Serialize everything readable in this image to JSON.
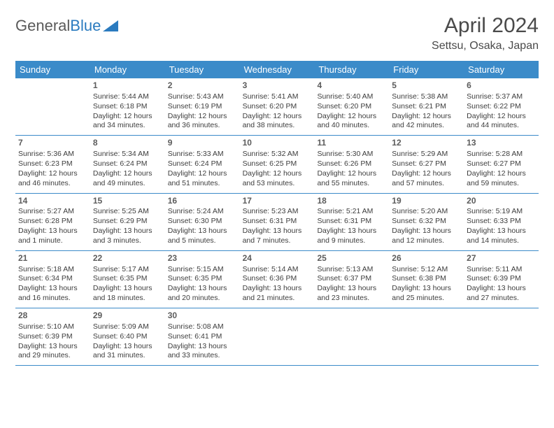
{
  "brand": {
    "part1": "General",
    "part2": "Blue"
  },
  "title": "April 2024",
  "location": "Settsu, Osaka, Japan",
  "colors": {
    "header_bg": "#3b8bc9",
    "header_text": "#ffffff",
    "rule": "#3b8bc9",
    "body_text": "#3d3d3d",
    "title_text": "#4a4a4a",
    "logo_gray": "#5a5a5a",
    "logo_blue": "#2b7bbf",
    "background": "#ffffff"
  },
  "typography": {
    "title_fontsize": 30,
    "location_fontsize": 16,
    "dayheader_fontsize": 13,
    "daynum_fontsize": 12,
    "cell_fontsize": 10.5
  },
  "day_names": [
    "Sunday",
    "Monday",
    "Tuesday",
    "Wednesday",
    "Thursday",
    "Friday",
    "Saturday"
  ],
  "labels": {
    "sunrise": "Sunrise:",
    "sunset": "Sunset:",
    "daylight": "Daylight:"
  },
  "weeks": [
    [
      null,
      {
        "n": "1",
        "sr": "5:44 AM",
        "ss": "6:18 PM",
        "dl": "12 hours and 34 minutes."
      },
      {
        "n": "2",
        "sr": "5:43 AM",
        "ss": "6:19 PM",
        "dl": "12 hours and 36 minutes."
      },
      {
        "n": "3",
        "sr": "5:41 AM",
        "ss": "6:20 PM",
        "dl": "12 hours and 38 minutes."
      },
      {
        "n": "4",
        "sr": "5:40 AM",
        "ss": "6:20 PM",
        "dl": "12 hours and 40 minutes."
      },
      {
        "n": "5",
        "sr": "5:38 AM",
        "ss": "6:21 PM",
        "dl": "12 hours and 42 minutes."
      },
      {
        "n": "6",
        "sr": "5:37 AM",
        "ss": "6:22 PM",
        "dl": "12 hours and 44 minutes."
      }
    ],
    [
      {
        "n": "7",
        "sr": "5:36 AM",
        "ss": "6:23 PM",
        "dl": "12 hours and 46 minutes."
      },
      {
        "n": "8",
        "sr": "5:34 AM",
        "ss": "6:24 PM",
        "dl": "12 hours and 49 minutes."
      },
      {
        "n": "9",
        "sr": "5:33 AM",
        "ss": "6:24 PM",
        "dl": "12 hours and 51 minutes."
      },
      {
        "n": "10",
        "sr": "5:32 AM",
        "ss": "6:25 PM",
        "dl": "12 hours and 53 minutes."
      },
      {
        "n": "11",
        "sr": "5:30 AM",
        "ss": "6:26 PM",
        "dl": "12 hours and 55 minutes."
      },
      {
        "n": "12",
        "sr": "5:29 AM",
        "ss": "6:27 PM",
        "dl": "12 hours and 57 minutes."
      },
      {
        "n": "13",
        "sr": "5:28 AM",
        "ss": "6:27 PM",
        "dl": "12 hours and 59 minutes."
      }
    ],
    [
      {
        "n": "14",
        "sr": "5:27 AM",
        "ss": "6:28 PM",
        "dl": "13 hours and 1 minute."
      },
      {
        "n": "15",
        "sr": "5:25 AM",
        "ss": "6:29 PM",
        "dl": "13 hours and 3 minutes."
      },
      {
        "n": "16",
        "sr": "5:24 AM",
        "ss": "6:30 PM",
        "dl": "13 hours and 5 minutes."
      },
      {
        "n": "17",
        "sr": "5:23 AM",
        "ss": "6:31 PM",
        "dl": "13 hours and 7 minutes."
      },
      {
        "n": "18",
        "sr": "5:21 AM",
        "ss": "6:31 PM",
        "dl": "13 hours and 9 minutes."
      },
      {
        "n": "19",
        "sr": "5:20 AM",
        "ss": "6:32 PM",
        "dl": "13 hours and 12 minutes."
      },
      {
        "n": "20",
        "sr": "5:19 AM",
        "ss": "6:33 PM",
        "dl": "13 hours and 14 minutes."
      }
    ],
    [
      {
        "n": "21",
        "sr": "5:18 AM",
        "ss": "6:34 PM",
        "dl": "13 hours and 16 minutes."
      },
      {
        "n": "22",
        "sr": "5:17 AM",
        "ss": "6:35 PM",
        "dl": "13 hours and 18 minutes."
      },
      {
        "n": "23",
        "sr": "5:15 AM",
        "ss": "6:35 PM",
        "dl": "13 hours and 20 minutes."
      },
      {
        "n": "24",
        "sr": "5:14 AM",
        "ss": "6:36 PM",
        "dl": "13 hours and 21 minutes."
      },
      {
        "n": "25",
        "sr": "5:13 AM",
        "ss": "6:37 PM",
        "dl": "13 hours and 23 minutes."
      },
      {
        "n": "26",
        "sr": "5:12 AM",
        "ss": "6:38 PM",
        "dl": "13 hours and 25 minutes."
      },
      {
        "n": "27",
        "sr": "5:11 AM",
        "ss": "6:39 PM",
        "dl": "13 hours and 27 minutes."
      }
    ],
    [
      {
        "n": "28",
        "sr": "5:10 AM",
        "ss": "6:39 PM",
        "dl": "13 hours and 29 minutes."
      },
      {
        "n": "29",
        "sr": "5:09 AM",
        "ss": "6:40 PM",
        "dl": "13 hours and 31 minutes."
      },
      {
        "n": "30",
        "sr": "5:08 AM",
        "ss": "6:41 PM",
        "dl": "13 hours and 33 minutes."
      },
      null,
      null,
      null,
      null
    ]
  ]
}
